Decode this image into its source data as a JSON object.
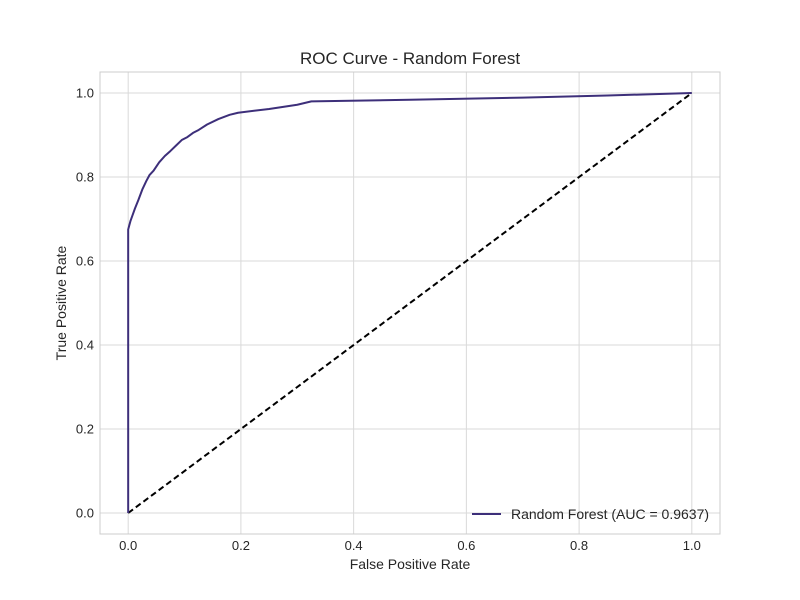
{
  "chart_data": {
    "type": "line",
    "title": "ROC Curve - Random Forest",
    "xlabel": "False Positive Rate",
    "ylabel": "True Positive Rate",
    "xlim": [
      -0.05,
      1.05
    ],
    "ylim": [
      -0.05,
      1.05
    ],
    "xticks": [
      0.0,
      0.2,
      0.4,
      0.6,
      0.8,
      1.0
    ],
    "xtick_labels": [
      "0.0",
      "0.2",
      "0.4",
      "0.6",
      "0.8",
      "1.0"
    ],
    "yticks": [
      0.0,
      0.2,
      0.4,
      0.6,
      0.8,
      1.0
    ],
    "ytick_labels": [
      "0.0",
      "0.2",
      "0.4",
      "0.6",
      "0.8",
      "1.0"
    ],
    "grid": true,
    "legend_position": "lower-right",
    "series": [
      {
        "name": "Random Forest (AUC = 0.9637)",
        "color": "#3d2f7a",
        "style": "solid",
        "x": [
          0.0,
          0.0,
          0.002,
          0.004,
          0.008,
          0.012,
          0.018,
          0.025,
          0.032,
          0.038,
          0.045,
          0.055,
          0.065,
          0.075,
          0.085,
          0.095,
          0.105,
          0.115,
          0.125,
          0.14,
          0.16,
          0.18,
          0.195,
          0.25,
          0.3,
          0.325,
          0.5,
          0.7,
          0.85,
          1.0
        ],
        "y": [
          0.0,
          0.675,
          0.685,
          0.695,
          0.71,
          0.725,
          0.745,
          0.77,
          0.79,
          0.805,
          0.815,
          0.835,
          0.85,
          0.862,
          0.875,
          0.888,
          0.895,
          0.905,
          0.912,
          0.925,
          0.938,
          0.948,
          0.953,
          0.962,
          0.972,
          0.98,
          0.984,
          0.989,
          0.994,
          1.0
        ]
      },
      {
        "name": "",
        "color": "#000000",
        "style": "dashed",
        "x": [
          0.0,
          1.0
        ],
        "y": [
          0.0,
          1.0
        ]
      }
    ]
  }
}
